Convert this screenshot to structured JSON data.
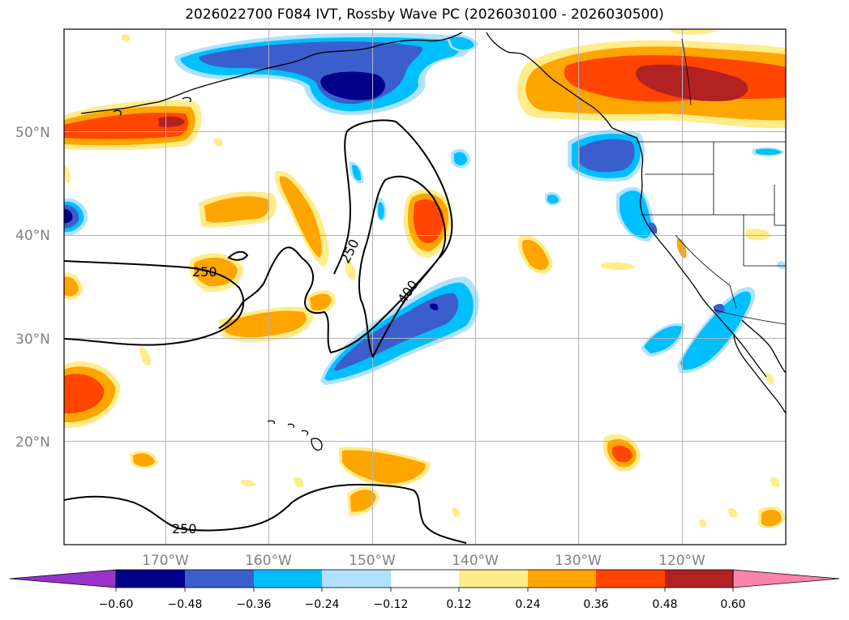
{
  "title": "2026022700 F084 IVT, Rossby Wave PC (2026030100 - 2026030500)",
  "map": {
    "lat_labels": [
      "50°N",
      "40°N",
      "30°N",
      "20°N"
    ],
    "lon_labels": [
      "170°W",
      "160°W",
      "150°W",
      "140°W",
      "130°W",
      "120°W"
    ],
    "lat_range": [
      10,
      60
    ],
    "lon_range": [
      -180,
      -110
    ],
    "grid": true
  },
  "contour_labels": [
    "250",
    "250",
    "400",
    "250"
  ],
  "colorbar": {
    "ticks": [
      "−0.60",
      "−0.48",
      "−0.36",
      "−0.24",
      "−0.12",
      "0.12",
      "0.24",
      "0.36",
      "0.48",
      "0.60"
    ],
    "colors": {
      "under": "#9932cc",
      "b1": "#00008b",
      "b2": "#3a5fcd",
      "b3": "#00bfff",
      "b4": "#b0e2ff",
      "neutral": "#ffffff",
      "r1": "#ffec8b",
      "r2": "#ffa500",
      "r3": "#ff4500",
      "r4": "#b22222",
      "over": "#ff82ab"
    }
  }
}
